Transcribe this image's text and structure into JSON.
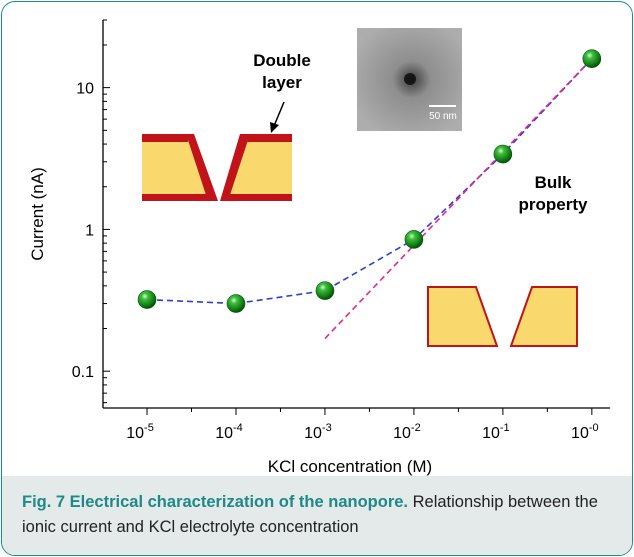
{
  "chart_data": {
    "type": "scatter",
    "xlabel": "KCl concentration (M)",
    "ylabel": "Current (nA)",
    "x_scale": "log",
    "y_scale": "log",
    "xlim": [
      3.2e-06,
      1.6
    ],
    "ylim": [
      0.055,
      30
    ],
    "x_ticks": [
      {
        "value": 1e-05,
        "base": "10",
        "exp": "-5"
      },
      {
        "value": 0.0001,
        "base": "10",
        "exp": "-4"
      },
      {
        "value": 0.001,
        "base": "10",
        "exp": "-3"
      },
      {
        "value": 0.01,
        "base": "10",
        "exp": "-2"
      },
      {
        "value": 0.1,
        "base": "10",
        "exp": "-1"
      },
      {
        "value": 1,
        "base": "10",
        "exp": "-0"
      }
    ],
    "y_ticks": [
      {
        "value": 0.1,
        "label": "0.1"
      },
      {
        "value": 1,
        "label": "1"
      },
      {
        "value": 10,
        "label": "10"
      }
    ],
    "points": {
      "x": [
        1e-05,
        0.0001,
        0.001,
        0.01,
        0.1,
        1
      ],
      "y": [
        0.32,
        0.3,
        0.37,
        0.85,
        3.4,
        16
      ],
      "color": "#1a8a1a"
    },
    "blue_fit": {
      "x": [
        1e-05,
        0.0001,
        0.001,
        0.01,
        0.1,
        1
      ],
      "y": [
        0.32,
        0.3,
        0.37,
        0.85,
        3.4,
        16
      ],
      "color": "#2a3fd6"
    },
    "pink_fit": {
      "x": [
        0.001,
        1
      ],
      "y": [
        0.17,
        16
      ],
      "color": "#e0298a"
    },
    "annotations": {
      "double_layer": [
        "Double",
        "layer"
      ],
      "bulk_property": [
        "Bulk",
        "property"
      ],
      "scale_bar": "50 nm"
    },
    "grid": false,
    "legend": "none"
  },
  "colors": {
    "pore_fill": "#f9d86e",
    "pore_wall": "#c0141a",
    "frame": "#1f8c8c",
    "caption_bg": "#e4e9ea",
    "caption_title": "#1d8a88"
  },
  "caption": {
    "title": "Fig. 7 Electrical characterization of the nanopore.",
    "text": "Relationship between the ionic current and KCl electrolyte concentration"
  }
}
